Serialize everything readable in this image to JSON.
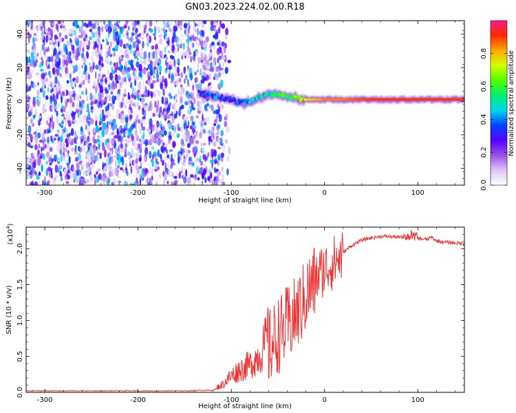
{
  "title": "GN03.2023.224.02.00.R18",
  "chart_data": [
    {
      "type": "heatmap",
      "xlabel": "Height of straight line (km)",
      "ylabel": "Frequency (Hz)",
      "xlim": [
        -320,
        150
      ],
      "ylim": [
        -50,
        48
      ],
      "xticks": [
        -300,
        -200,
        -100,
        0,
        100
      ],
      "xtick_labels": [
        "-300",
        "-200",
        "-100",
        "0",
        "100"
      ],
      "yticks": [
        -40,
        -20,
        0,
        20,
        40
      ],
      "ytick_labels": [
        "-40",
        "-20",
        "0",
        "20",
        "40"
      ],
      "grid": false,
      "noise_region_x": [
        -320,
        -115
      ],
      "signal_track": {
        "x": [
          -135,
          -120,
          -110,
          -100,
          -90,
          -80,
          -70,
          -60,
          -50,
          -40,
          -30,
          -20,
          0,
          20,
          50,
          80,
          100,
          120,
          150
        ],
        "freq": [
          5,
          3,
          2,
          1,
          -1,
          0,
          2,
          4,
          4,
          3,
          2,
          1,
          1,
          1,
          1,
          1,
          1,
          1,
          1
        ],
        "amplitude": [
          0.3,
          0.4,
          0.35,
          0.3,
          0.35,
          0.4,
          0.45,
          0.5,
          0.5,
          0.55,
          0.6,
          0.75,
          0.85,
          0.85,
          0.9,
          0.9,
          0.9,
          0.9,
          0.9
        ]
      },
      "colorbar": {
        "label": "Normalized spectral amplitude",
        "range": [
          0.0,
          1.0
        ],
        "ticks": [
          0.0,
          0.2,
          0.4,
          0.6,
          0.8
        ],
        "tick_labels": [
          "0.0",
          "0.2",
          "0.4",
          "0.6",
          "0.8"
        ],
        "colors": [
          "#ffffff",
          "#ddc6f6",
          "#9a4ee8",
          "#5a00ff",
          "#0044ff",
          "#00d8f0",
          "#00f070",
          "#50ff00",
          "#d4ff00",
          "#ffaa00",
          "#ff2a00",
          "#ff1a8c"
        ]
      }
    },
    {
      "type": "line",
      "xlabel": "Height of straight line (km)",
      "ylabel": "SNR (10 * v/v)",
      "scale_label": "(x10",
      "scale_exp": "4",
      "scale_close": ")",
      "xlim": [
        -320,
        150
      ],
      "ylim": [
        0,
        2.3
      ],
      "xticks": [
        -300,
        -200,
        -100,
        0,
        100
      ],
      "xtick_labels": [
        "-300",
        "-200",
        "-100",
        "0",
        "100"
      ],
      "yticks": [
        0.0,
        0.5,
        1.0,
        1.5,
        2.0
      ],
      "ytick_labels": [
        "0.0",
        "0.5",
        "1.0",
        "1.5",
        "2.0"
      ],
      "grid": false,
      "series": [
        {
          "color": "#ee3333",
          "x": [
            -320,
            -250,
            -200,
            -150,
            -120,
            -110,
            -100,
            -90,
            -80,
            -75,
            -70,
            -65,
            -60,
            -55,
            -50,
            -45,
            -40,
            -35,
            -30,
            -25,
            -20,
            -15,
            -10,
            -5,
            0,
            5,
            10,
            15,
            20,
            30,
            40,
            50,
            60,
            70,
            80,
            90,
            100,
            110,
            115,
            120,
            130,
            140,
            150
          ],
          "y": [
            0.02,
            0.02,
            0.02,
            0.02,
            0.03,
            0.08,
            0.18,
            0.25,
            0.3,
            0.35,
            0.4,
            0.5,
            0.65,
            0.75,
            0.85,
            0.9,
            1.0,
            1.05,
            1.15,
            1.25,
            1.4,
            1.5,
            1.6,
            1.7,
            1.75,
            1.8,
            1.85,
            1.9,
            1.95,
            2.05,
            2.12,
            2.15,
            2.17,
            2.17,
            2.16,
            2.15,
            2.14,
            2.13,
            2.16,
            2.11,
            2.09,
            2.08,
            2.07
          ]
        }
      ]
    }
  ]
}
